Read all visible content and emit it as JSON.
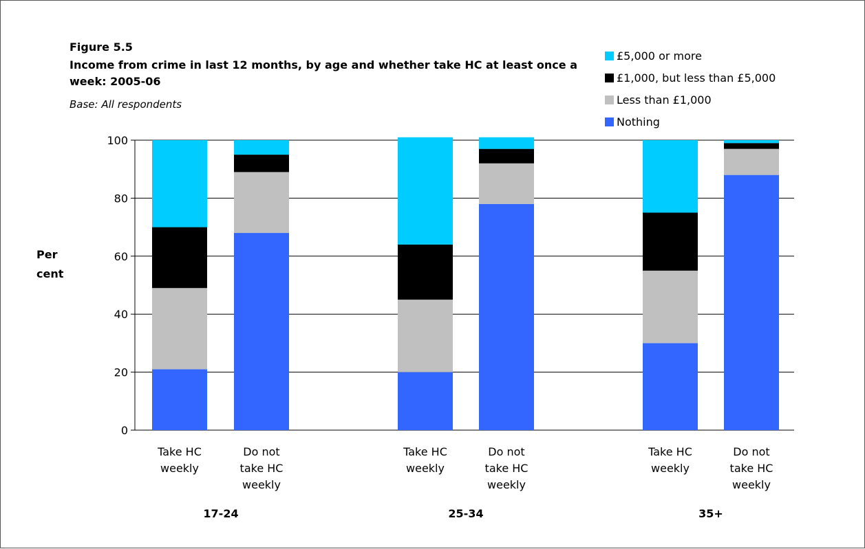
{
  "figure": {
    "label": "Figure 5.5",
    "title": "Income from crime in last 12 months, by age and whether take HC at least once a week: 2005-06",
    "subtitle": "Base: All respondents"
  },
  "chart_data": {
    "type": "bar",
    "stacked": true,
    "ylabel": "Per cent",
    "ylim": [
      0,
      100
    ],
    "yticks": [
      0,
      20,
      40,
      60,
      80,
      100
    ],
    "grid": true,
    "legend_position": "top-right",
    "groups": [
      "17-24",
      "25-34",
      "35+"
    ],
    "categories": [
      "Take HC weekly",
      "Do not take HC weekly",
      "Take HC weekly",
      "Do not take HC weekly",
      "Take HC weekly",
      "Do not take HC weekly"
    ],
    "category_group": [
      0,
      0,
      1,
      1,
      2,
      2
    ],
    "series": [
      {
        "name": "Nothing",
        "color": "#3366ff",
        "values": [
          21,
          68,
          20,
          78,
          30,
          88
        ]
      },
      {
        "name": "Less than £1,000",
        "color": "#c0c0c0",
        "values": [
          28,
          21,
          25,
          14,
          25,
          9
        ]
      },
      {
        "name": "£1,000, but less than £5,000",
        "color": "#000000",
        "values": [
          21,
          6,
          19,
          5,
          20,
          2
        ]
      },
      {
        "name": "£5,000 or more",
        "color": "#00ccff",
        "values": [
          30,
          5,
          37,
          4,
          25,
          1
        ]
      }
    ],
    "legend_order": [
      3,
      2,
      1,
      0
    ]
  }
}
